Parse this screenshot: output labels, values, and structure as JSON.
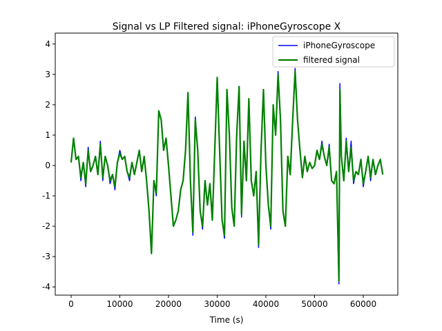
{
  "chart_data": {
    "type": "line",
    "title": "Signal vs LP Filtered signal: iPhoneGyroscope X",
    "x_label": "Time (s)",
    "x": [
      0,
      500,
      1000,
      1500,
      2000,
      2500,
      3000,
      3500,
      4000,
      4500,
      5000,
      5500,
      6000,
      6500,
      7000,
      7500,
      8000,
      8500,
      9000,
      9500,
      10000,
      10500,
      11000,
      11500,
      12000,
      12500,
      13000,
      13500,
      14000,
      14500,
      15000,
      15500,
      16000,
      16500,
      17000,
      17500,
      18000,
      18500,
      19000,
      19500,
      20000,
      20500,
      21000,
      21500,
      22000,
      22500,
      23000,
      23500,
      24000,
      24500,
      25000,
      25500,
      26000,
      26500,
      27000,
      27500,
      28000,
      28500,
      29000,
      29500,
      30000,
      30500,
      31000,
      31500,
      32000,
      32500,
      33000,
      33500,
      34000,
      34500,
      35000,
      35500,
      36000,
      36500,
      37000,
      37500,
      38000,
      38500,
      39000,
      39500,
      40000,
      40500,
      41000,
      41500,
      42000,
      42500,
      43000,
      43500,
      44000,
      44500,
      45000,
      45500,
      46000,
      46500,
      47000,
      47500,
      48000,
      48500,
      49000,
      49500,
      50000,
      50500,
      51000,
      51500,
      52000,
      52500,
      53000,
      53500,
      54000,
      54500,
      55000,
      55200,
      55500,
      56000,
      56500,
      57000,
      57500,
      58000,
      58500,
      59000,
      59500,
      60000,
      60500,
      61000,
      61500,
      62000,
      62500,
      63000,
      63500,
      64000
    ],
    "series": [
      {
        "name": "iPhoneGyroscope",
        "color": "#0000ff",
        "width": 1.5,
        "values": [
          0.1,
          0.9,
          0.2,
          0.3,
          -0.5,
          0.1,
          -0.7,
          0.6,
          -0.2,
          0,
          0.3,
          -0.3,
          0.8,
          -0.5,
          0.3,
          0,
          -0.6,
          -0.3,
          -0.8,
          0.1,
          0.5,
          0.2,
          0.3,
          -0.2,
          -0.5,
          0.1,
          -0.3,
          0.1,
          0.5,
          -0.2,
          0.3,
          -0.5,
          -1.5,
          -2.9,
          -0.5,
          -1.0,
          1.8,
          1.5,
          0.5,
          0.9,
          0,
          -1.0,
          -2.0,
          -1.8,
          -1.5,
          -0.8,
          -0.5,
          0.5,
          2.4,
          -0.5,
          -2.3,
          1.6,
          0.5,
          -1.5,
          -2.1,
          -0.5,
          -1.3,
          -0.6,
          -1.8,
          0.5,
          2.9,
          0.5,
          -1.8,
          -2.4,
          2.5,
          1.0,
          -1.4,
          -2.0,
          1.0,
          2.6,
          -1.7,
          0.8,
          -0.5,
          2.2,
          -0.5,
          -1.0,
          -0.2,
          -2.7,
          0.5,
          2.5,
          0,
          -1.3,
          -2.1,
          2.0,
          1.0,
          3.1,
          1.5,
          -1.5,
          -2.0,
          0.3,
          -0.3,
          1.5,
          3.2,
          1.5,
          0.5,
          -0.4,
          0.3,
          -0.2,
          0.1,
          -0.1,
          0,
          0.5,
          0.2,
          0.8,
          0.3,
          0,
          0.7,
          -0.5,
          -0.6,
          -0.2,
          -3.9,
          2.7,
          0.3,
          -0.5,
          0.9,
          -0.2,
          0.8,
          -0.6,
          -0.2,
          -0.3,
          0.2,
          -0.7,
          -0.2,
          0.3,
          -0.5,
          0.2,
          -0.3,
          0,
          0.2,
          -0.3
        ]
      },
      {
        "name": "filtered signal",
        "color": "#008000",
        "width": 2.2,
        "values": [
          0.1,
          0.9,
          0.2,
          0.3,
          -0.4,
          0.1,
          -0.6,
          0.5,
          -0.2,
          0,
          0.3,
          -0.3,
          0.7,
          -0.4,
          0.3,
          0,
          -0.5,
          -0.3,
          -0.7,
          0.1,
          0.4,
          0.2,
          0.3,
          -0.2,
          -0.4,
          0.1,
          -0.3,
          0.1,
          0.5,
          -0.2,
          0.3,
          -0.5,
          -1.5,
          -2.9,
          -0.5,
          -0.9,
          1.8,
          1.5,
          0.5,
          0.9,
          0,
          -1.0,
          -2.0,
          -1.8,
          -1.5,
          -0.8,
          -0.5,
          0.5,
          2.4,
          -0.5,
          -2.2,
          1.5,
          0.5,
          -1.5,
          -2.0,
          -0.5,
          -1.3,
          -0.6,
          -1.8,
          0.5,
          2.9,
          0.5,
          -1.8,
          -2.3,
          2.5,
          1.0,
          -1.4,
          -2.0,
          1.0,
          2.6,
          -1.6,
          0.8,
          -0.5,
          2.2,
          -0.5,
          -1.0,
          -0.2,
          -2.6,
          0.5,
          2.5,
          0,
          -1.3,
          -2.0,
          2.0,
          1.0,
          3.0,
          1.5,
          -1.5,
          -2.0,
          0.3,
          -0.3,
          1.5,
          3.1,
          1.5,
          0.5,
          -0.4,
          0.3,
          -0.2,
          0.1,
          -0.1,
          0,
          0.5,
          0.2,
          0.7,
          0.3,
          0,
          0.6,
          -0.5,
          -0.6,
          -0.2,
          -3.8,
          2.5,
          0.3,
          -0.5,
          0.8,
          -0.2,
          0.6,
          -0.5,
          -0.2,
          -0.3,
          0.2,
          -0.6,
          -0.2,
          0.3,
          -0.4,
          0.2,
          -0.3,
          0,
          0.2,
          -0.3
        ]
      }
    ],
    "xlim": [
      -3260,
      67090
    ],
    "ylim": [
      -4.27,
      4.36
    ],
    "xticks": [
      0,
      10000,
      20000,
      30000,
      40000,
      50000,
      60000
    ],
    "yticks": [
      -4,
      -3,
      -2,
      -1,
      0,
      1,
      2,
      3,
      4
    ],
    "legend": "upper right"
  }
}
